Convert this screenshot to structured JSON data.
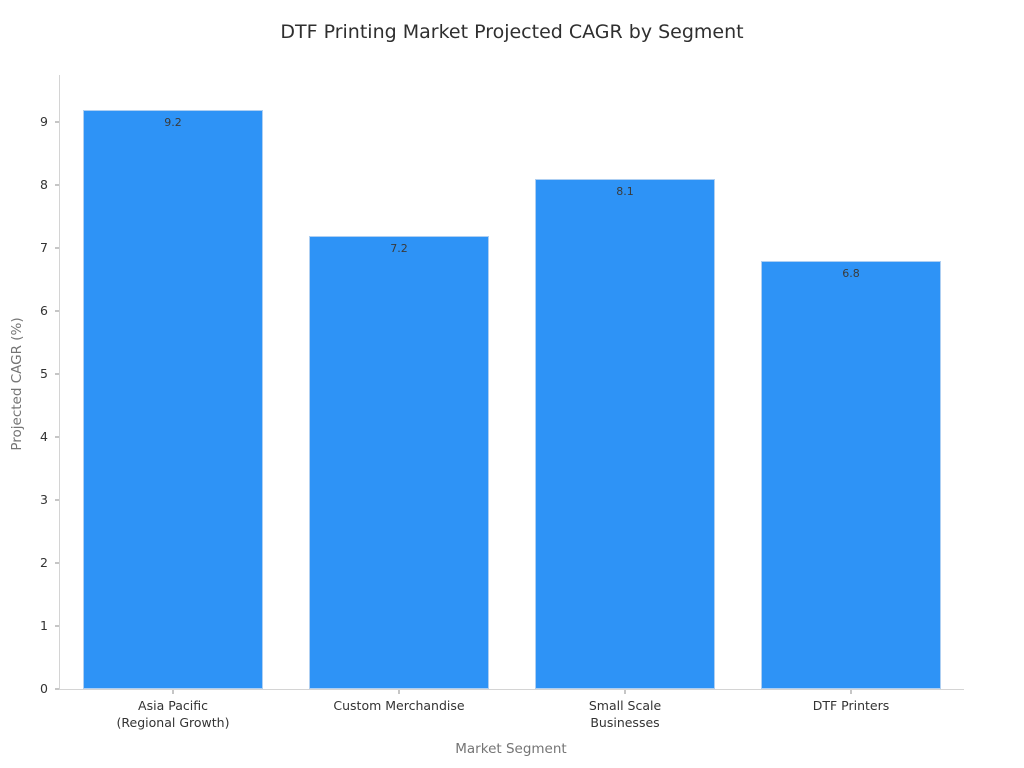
{
  "chart_data": {
    "type": "bar",
    "title": "DTF Printing Market Projected CAGR by Segment",
    "xlabel": "Market Segment",
    "ylabel": "Projected CAGR (%)",
    "categories": [
      "Asia Pacific\n(Regional Growth)",
      "Custom Merchandise",
      "Small Scale\nBusinesses",
      "DTF Printers"
    ],
    "values": [
      9.2,
      7.2,
      8.1,
      6.8
    ],
    "value_labels": [
      "9.2",
      "7.2",
      "8.1",
      "6.8"
    ],
    "yticks": [
      0,
      1,
      2,
      3,
      4,
      5,
      6,
      7,
      8,
      9
    ],
    "ylim": [
      0,
      9.75
    ],
    "bar_width_fraction": 0.8,
    "grid": false,
    "legend": null,
    "colors": {
      "bar_fill": "#2E93F6",
      "bar_edge": "#aecff2",
      "axis_spine": "#d4d4d4",
      "tick_mark": "#8c8c8c",
      "tick_label": "#333333",
      "axis_label": "#757575",
      "title": "#2f2f2f",
      "background": "#ffffff"
    }
  }
}
